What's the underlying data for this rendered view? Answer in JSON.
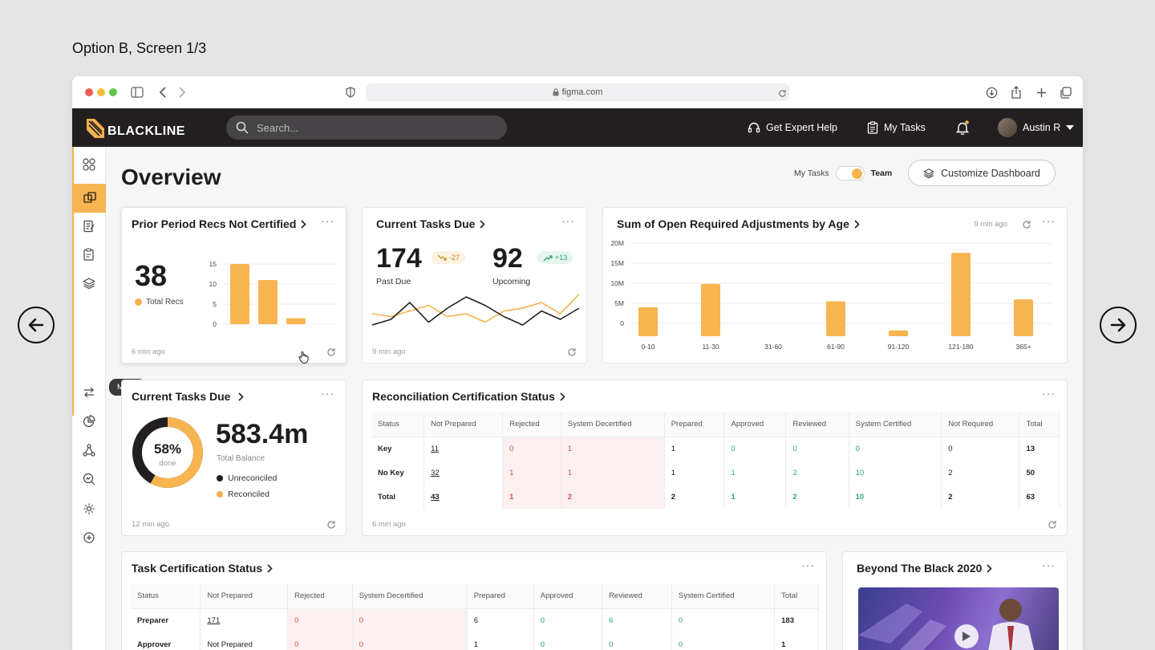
{
  "caption": "Option B, Screen 1/3",
  "browser": {
    "url": "figma.com"
  },
  "app": {
    "logo": "BLACKLINE",
    "search_placeholder": "Search...",
    "expert_help": "Get Expert Help",
    "my_tasks": "My Tasks",
    "user": "Austin R"
  },
  "sidebar": {
    "tooltip": "Match",
    "items": [
      "apps-icon",
      "dashboard-icon",
      "journal-icon",
      "tasks-icon",
      "layers-icon",
      "match-icon",
      "analytics-icon",
      "workflow-icon",
      "insights-icon",
      "settings-icon",
      "add-icon"
    ]
  },
  "overview": {
    "title": "Overview",
    "toggle_left": "My Tasks",
    "toggle_right": "Team",
    "customize": "Customize Dashboard"
  },
  "prior_recs": {
    "title": "Prior Period Recs Not Certified",
    "value": "38",
    "legend": "Total Recs",
    "updated": "6 min ago",
    "chart_data": {
      "type": "bar",
      "values": [
        15,
        11,
        1.5
      ],
      "ylim": [
        0,
        15
      ],
      "yticks": [
        "15",
        "10",
        "5",
        "0"
      ]
    }
  },
  "tasks_due": {
    "title": "Current Tasks Due",
    "past_value": "174",
    "past_delta": "-27",
    "past_label": "Past Due",
    "upcoming_value": "92",
    "upcoming_delta": "+13",
    "upcoming_label": "Upcoming",
    "updated": "9 min ago",
    "chart_data": {
      "type": "line",
      "series": [
        {
          "values": [
            20,
            30,
            60,
            25,
            50,
            70,
            55,
            35,
            20,
            45,
            30,
            50
          ]
        },
        {
          "values": [
            40,
            35,
            45,
            55,
            35,
            40,
            25,
            45,
            50,
            60,
            40,
            75
          ]
        }
      ]
    }
  },
  "adjustments": {
    "title": "Sum of Open Required Adjustments by Age",
    "updated": "9 min ago",
    "chart_data": {
      "type": "bar",
      "categories": [
        "0-10",
        "11-30",
        "31-60",
        "61-90",
        "91-120",
        "121-180",
        "365+"
      ],
      "values": [
        7.5,
        13.5,
        0,
        9,
        1.5,
        21.5,
        9.5
      ],
      "yticks": [
        "20M",
        "15M",
        "10M",
        "5M",
        "0"
      ],
      "ylim": [
        0,
        24
      ]
    }
  },
  "balance": {
    "title": "Current Tasks Due",
    "percent": "58%",
    "percent_label": "done",
    "total": "583.4m",
    "total_label": "Total Balance",
    "legend_unrec": "Unreconciled",
    "legend_rec": "Reconciled",
    "done_fraction": 0.58,
    "updated": "12 min ago"
  },
  "rec_status": {
    "title": "Reconciliation Certification Status",
    "updated": "6 min ago",
    "headers": [
      "Status",
      "Not Prepared",
      "Rejected",
      "System Decertified",
      "Prepared",
      "Approved",
      "Reviewed",
      "System Certified",
      "Not Required",
      "Total"
    ],
    "rows": [
      [
        "Key",
        "11",
        "0",
        "1",
        "1",
        "0",
        "0",
        "0",
        "0",
        "13"
      ],
      [
        "No Key",
        "32",
        "1",
        "1",
        "1",
        "1",
        "2",
        "10",
        "2",
        "50"
      ],
      [
        "Total",
        "43",
        "1",
        "2",
        "2",
        "1",
        "2",
        "10",
        "2",
        "63"
      ]
    ]
  },
  "task_status": {
    "title": "Task Certification Status",
    "headers": [
      "Status",
      "Not Prepared",
      "Rejected",
      "System Decertified",
      "Prepared",
      "Approved",
      "Reviewed",
      "System Certified",
      "Total"
    ],
    "rows": [
      [
        "Preparer",
        "171",
        "0",
        "0",
        "6",
        "0",
        "6",
        "0",
        "183"
      ],
      [
        "Approver",
        "Not Prepared",
        "0",
        "0",
        "1",
        "0",
        "0",
        "0",
        "1"
      ]
    ]
  },
  "video": {
    "title": "Beyond The Black 2020"
  }
}
